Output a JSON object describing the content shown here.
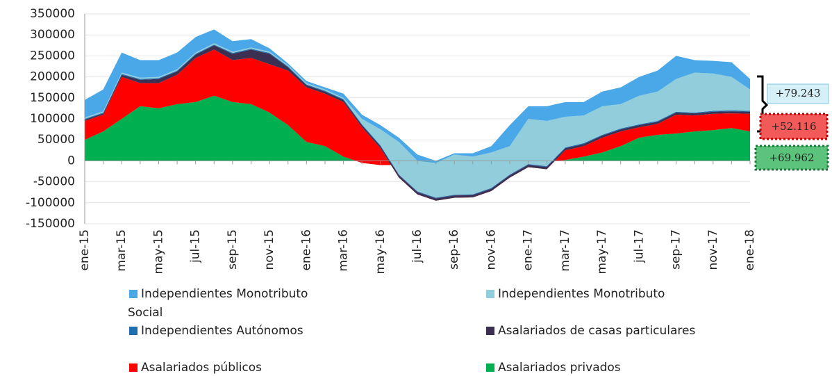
{
  "chart_data": {
    "type": "stacked_area",
    "categories": [
      "ene-15",
      null,
      "mar-15",
      null,
      "may-15",
      null,
      "jul-15",
      null,
      "sep-15",
      null,
      "nov-15",
      null,
      "ene-16",
      null,
      "mar-16",
      null,
      "may-16",
      null,
      "jul-16",
      null,
      "sep-16",
      null,
      "nov-16",
      null,
      "ene-17",
      null,
      "mar-17",
      null,
      "may-17",
      null,
      "jul-17",
      null,
      "sep-17",
      null,
      "nov-17",
      null,
      "ene-18"
    ],
    "series": [
      {
        "name": "Asalariados privados",
        "color": "#00b050",
        "values": [
          50000,
          70000,
          100000,
          130000,
          125000,
          135000,
          140000,
          155000,
          140000,
          135000,
          115000,
          85000,
          45000,
          35000,
          10000,
          -5000,
          -10000,
          -10000,
          -10000,
          -5000,
          -5000,
          -5000,
          -5000,
          -3000,
          -2000,
          -3000,
          2000,
          10000,
          20000,
          35000,
          55000,
          62000,
          65000,
          70000,
          73000,
          78000,
          70000
        ]
      },
      {
        "name": "Asalariados públicos",
        "color": "#ff0000",
        "values": [
          45000,
          40000,
          100000,
          55000,
          60000,
          70000,
          105000,
          110000,
          100000,
          110000,
          115000,
          130000,
          130000,
          125000,
          130000,
          85000,
          40000,
          -30000,
          -70000,
          -90000,
          -83000,
          -82000,
          -67000,
          -37000,
          -13000,
          -17000,
          23000,
          25000,
          35000,
          35000,
          25000,
          26000,
          45000,
          38000,
          39000,
          35000,
          42000
        ]
      },
      {
        "name": "Asalariados de casas particulares",
        "color": "#3b3052",
        "values": [
          3000,
          3000,
          5000,
          8000,
          10000,
          8000,
          8000,
          10000,
          15000,
          20000,
          25000,
          8000,
          5000,
          5000,
          5000,
          5000,
          5000,
          5000,
          5000,
          5000,
          5000,
          5000,
          5000,
          5000,
          5000,
          5000,
          5000,
          5000,
          5000,
          5000,
          5000,
          5000,
          5000,
          5000,
          5000,
          5000,
          5000
        ]
      },
      {
        "name": "Independientes Autónomos",
        "color": "#1f6fb0",
        "values": [
          2000,
          2000,
          2000,
          2000,
          2000,
          2000,
          2000,
          2000,
          2000,
          2000,
          2000,
          2000,
          2000,
          2000,
          2000,
          2000,
          2000,
          2000,
          2000,
          2000,
          2000,
          2000,
          2000,
          2000,
          2000,
          2000,
          2000,
          2000,
          2000,
          2000,
          2000,
          2000,
          2000,
          2000,
          2000,
          2000,
          2000
        ]
      },
      {
        "name": "Independientes Monotributo",
        "color": "#92cddc",
        "values": [
          3000,
          3000,
          3000,
          3000,
          3000,
          3000,
          3000,
          3000,
          3000,
          3000,
          3000,
          3000,
          3000,
          3000,
          3000,
          13000,
          38000,
          78000,
          73000,
          83000,
          96000,
          90000,
          85000,
          68000,
          108000,
          108000,
          73000,
          66000,
          68000,
          58000,
          68000,
          70000,
          78000,
          95000,
          89000,
          80000,
          51000
        ]
      },
      {
        "name": "Independientes Monotributo Social",
        "color": "#4aa8e8",
        "values": [
          42000,
          52000,
          48000,
          42000,
          40000,
          40000,
          37000,
          33000,
          25000,
          20000,
          8000,
          4000,
          5000,
          5000,
          10000,
          10000,
          10000,
          10000,
          15000,
          5000,
          3000,
          8000,
          15000,
          50000,
          30000,
          35000,
          35000,
          32000,
          35000,
          40000,
          45000,
          50000,
          55000,
          30000,
          30000,
          35000,
          25000
        ]
      }
    ],
    "ylim": [
      -150000,
      350000
    ],
    "yticks": [
      -150000,
      -100000,
      -50000,
      0,
      50000,
      100000,
      150000,
      200000,
      250000,
      300000,
      350000
    ],
    "grid": true,
    "annotations": [
      "+79.243",
      "+52.116",
      "+69.962"
    ]
  }
}
